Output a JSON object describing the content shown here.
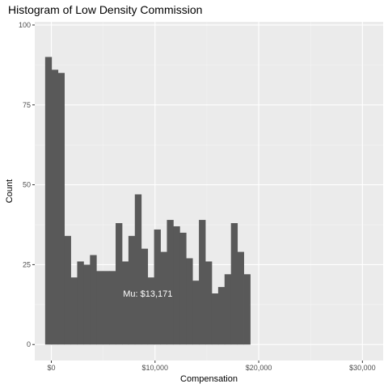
{
  "chart_data": {
    "type": "bar",
    "title": "Histogram of Low Density Commission",
    "xlabel": "Compensation",
    "ylabel": "Count",
    "xlim": [
      -1600,
      32000
    ],
    "ylim": [
      -5,
      101
    ],
    "grid": true,
    "x_ticks": [
      {
        "value": 0,
        "label": "$0"
      },
      {
        "value": 10000,
        "label": "$10,000"
      },
      {
        "value": 20000,
        "label": "$20,000"
      },
      {
        "value": 30000,
        "label": "$30,000"
      }
    ],
    "y_ticks": [
      {
        "value": 0,
        "label": "0"
      },
      {
        "value": 25,
        "label": "25"
      },
      {
        "value": 50,
        "label": "50"
      },
      {
        "value": 75,
        "label": "75"
      },
      {
        "value": 100,
        "label": "100"
      }
    ],
    "bin_width": 618,
    "bin_start": -600,
    "values": [
      90,
      86,
      85,
      34,
      21,
      26,
      25,
      28,
      23,
      23,
      23,
      38,
      26,
      34,
      47,
      30,
      21,
      36,
      29,
      39,
      37,
      35,
      27,
      20,
      39,
      26,
      16,
      18,
      22,
      38,
      29,
      22
    ],
    "bar_color": "#595959",
    "panel_color": "#ebebeb",
    "annotation": {
      "text": "Mu: $13,171",
      "x": 9300,
      "y": 15
    }
  }
}
